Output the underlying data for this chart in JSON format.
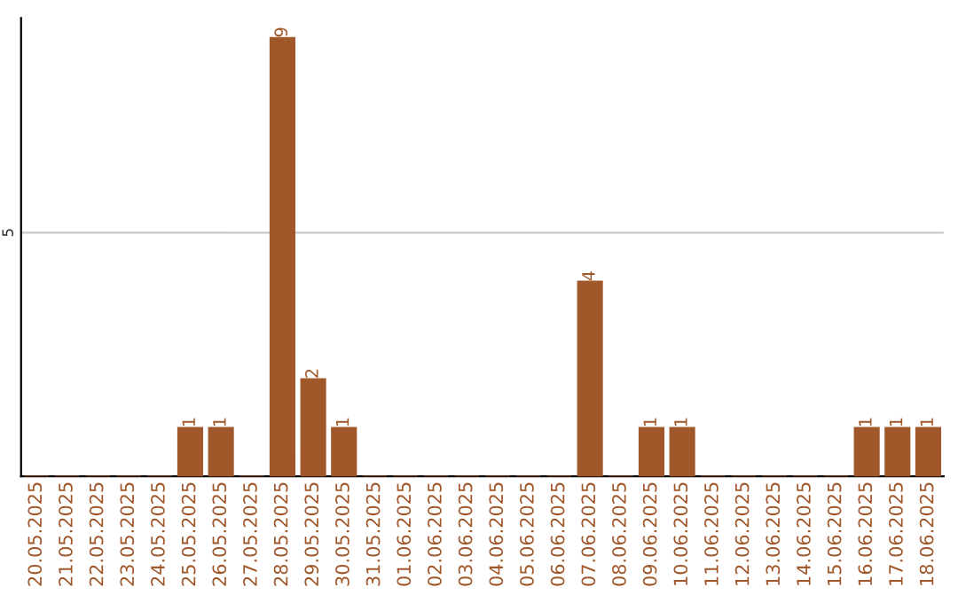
{
  "chart_data": {
    "type": "bar",
    "categories": [
      "20.05.2025",
      "21.05.2025",
      "22.05.2025",
      "23.05.2025",
      "24.05.2025",
      "25.05.2025",
      "26.05.2025",
      "27.05.2025",
      "28.05.2025",
      "29.05.2025",
      "30.05.2025",
      "31.05.2025",
      "01.06.2025",
      "02.06.2025",
      "03.06.2025",
      "04.06.2025",
      "05.06.2025",
      "06.06.2025",
      "07.06.2025",
      "08.06.2025",
      "09.06.2025",
      "10.06.2025",
      "11.06.2025",
      "12.06.2025",
      "13.06.2025",
      "14.06.2025",
      "15.06.2025",
      "16.06.2025",
      "17.06.2025",
      "18.06.2025"
    ],
    "values": [
      0,
      0,
      0,
      0,
      0,
      1,
      1,
      0,
      9,
      2,
      1,
      0,
      0,
      0,
      0,
      0,
      0,
      0,
      4,
      0,
      1,
      1,
      0,
      0,
      0,
      0,
      0,
      1,
      1,
      1
    ],
    "value_labels": [
      null,
      null,
      null,
      null,
      null,
      "1",
      "1",
      null,
      "9",
      "2",
      "1",
      null,
      null,
      null,
      null,
      null,
      null,
      null,
      "4",
      null,
      "1",
      "1",
      null,
      null,
      null,
      null,
      null,
      "1",
      "1",
      "1"
    ],
    "color": "#a0572a",
    "ylim": [
      0,
      9.4
    ],
    "yticks": [
      5
    ],
    "grid": "y",
    "legend": false
  }
}
